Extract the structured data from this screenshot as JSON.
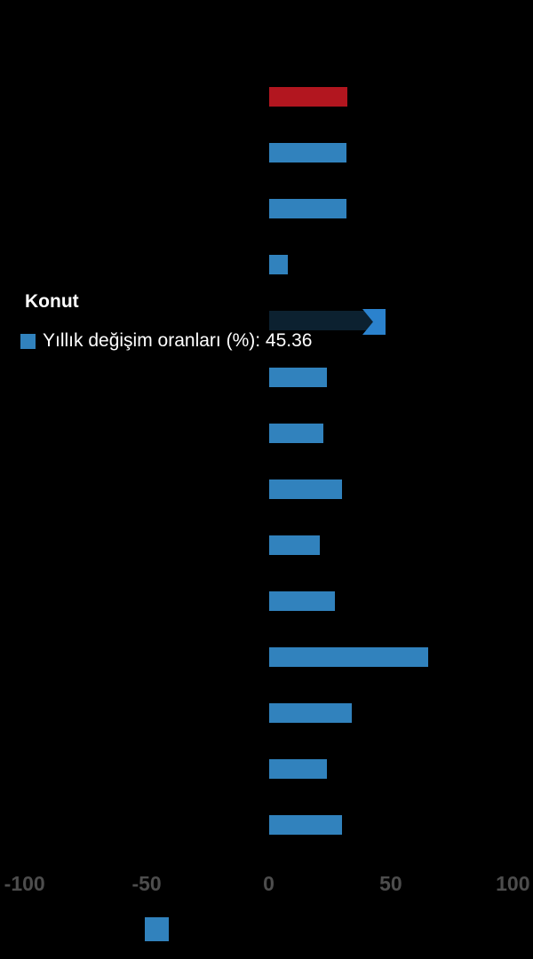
{
  "colors": {
    "background": "#000000",
    "bar_blue": "#3182bd",
    "bar_red": "#b2161f",
    "bar_dimmed": "#0c2130",
    "arrow_blue": "#2b82cd",
    "axis_label": "#4d4d4d",
    "tooltip_text": "#ffffff"
  },
  "tooltip": {
    "title": "Konut",
    "label_prefix": "Yıllık değişim oranları (%): ",
    "value": "45.36"
  },
  "legend": {
    "label": "Yıllık değişim oranları (%)"
  },
  "chart_data": {
    "type": "bar",
    "orientation": "horizontal",
    "title": "",
    "xlabel": "",
    "ylabel": "",
    "xlim": [
      -100,
      100
    ],
    "x_ticks": [
      "-100",
      "-50",
      "0",
      "50",
      "100"
    ],
    "grid": false,
    "legend_position": "bottom-center",
    "series_name": "Yıllık değişim oranları (%)",
    "highlighted_category": "Konut",
    "highlighted_value": 45.36,
    "categories": [
      "",
      "",
      "",
      "",
      "Konut",
      "",
      "",
      "",
      "",
      "",
      "",
      "",
      "",
      ""
    ],
    "bars": [
      {
        "value": 32.2,
        "color_key": "bar_red",
        "state": "normal"
      },
      {
        "value": 31.7,
        "color_key": "bar_blue",
        "state": "normal"
      },
      {
        "value": 31.7,
        "color_key": "bar_blue",
        "state": "normal"
      },
      {
        "value": 7.5,
        "color_key": "bar_blue",
        "state": "normal"
      },
      {
        "value": 45.36,
        "color_key": "bar_dimmed",
        "state": "hovered",
        "category": "Konut"
      },
      {
        "value": 23.5,
        "color_key": "bar_blue",
        "state": "normal"
      },
      {
        "value": 22.2,
        "color_key": "bar_blue",
        "state": "normal"
      },
      {
        "value": 29.7,
        "color_key": "bar_blue",
        "state": "normal"
      },
      {
        "value": 20.6,
        "color_key": "bar_blue",
        "state": "normal"
      },
      {
        "value": 27.1,
        "color_key": "bar_blue",
        "state": "normal"
      },
      {
        "value": 65.0,
        "color_key": "bar_blue",
        "state": "normal"
      },
      {
        "value": 33.7,
        "color_key": "bar_blue",
        "state": "normal"
      },
      {
        "value": 23.5,
        "color_key": "bar_blue",
        "state": "normal"
      },
      {
        "value": 30.0,
        "color_key": "bar_blue",
        "state": "normal"
      }
    ]
  }
}
